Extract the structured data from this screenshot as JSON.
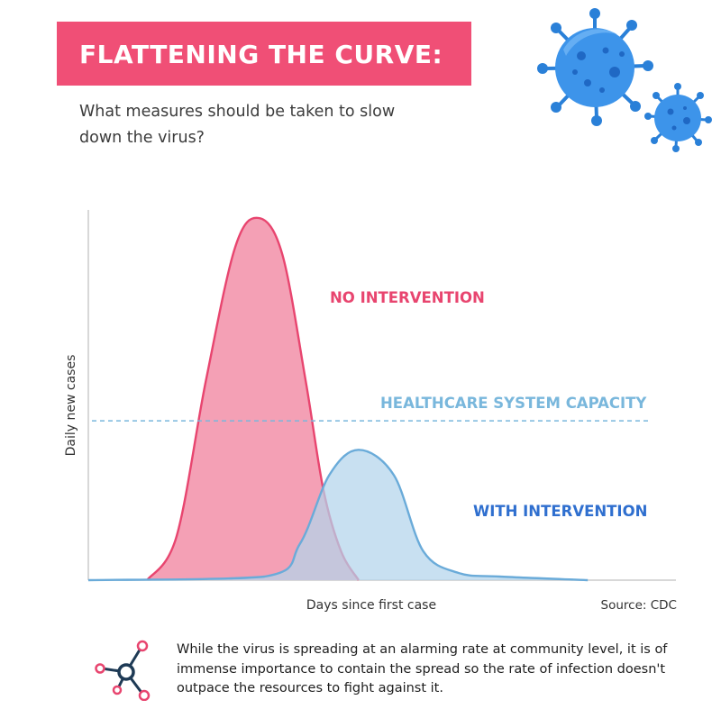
{
  "header": {
    "title": "FLATTENING THE CURVE:",
    "subtitle": "What measures should be taken to slow down the virus?"
  },
  "chart_data": {
    "type": "area",
    "title": "FLATTENING THE CURVE:",
    "subtitle": "What measures should be taken to slow down the virus?",
    "xlabel": "Days since first case",
    "ylabel": "Daily new cases",
    "source": "Source: CDC",
    "x_ticks": [],
    "y_ticks": [],
    "xlim": [
      0,
      100
    ],
    "ylim": [
      0,
      100
    ],
    "grid": false,
    "series": [
      {
        "name": "NO INTERVENTION",
        "color": "#e8456f",
        "fill": "#f4a0b5",
        "x": [
          10,
          15,
          20,
          25,
          29,
          33,
          37,
          40,
          43,
          46
        ],
        "y": [
          0,
          12,
          55,
          92,
          100,
          90,
          55,
          25,
          8,
          0
        ]
      },
      {
        "name": "WITH INTERVENTION",
        "color": "#6aabd9",
        "fill": "#b3d4ec",
        "x": [
          0,
          30,
          36,
          41,
          46,
          52,
          57,
          63,
          70,
          85
        ],
        "y": [
          0,
          1,
          10,
          29,
          36,
          29,
          8,
          2,
          1,
          0
        ]
      }
    ],
    "annotations": [
      {
        "label": "HEALTHCARE SYSTEM CAPACITY",
        "type": "hline",
        "y": 44,
        "color": "#79b7dc"
      }
    ]
  },
  "series_labels": {
    "no_intervention": "NO INTERVENTION",
    "with_intervention": "WITH INTERVENTION",
    "capacity": "HEALTHCARE SYSTEM CAPACITY"
  },
  "footer": {
    "text": "While the virus is spreading at an alarming rate at community level, it is of immense importance to contain the spread so the rate of infection doesn't outpace the resources to fight against it.",
    "icon": "network-node-icon"
  },
  "colors": {
    "accent_pink": "#f04f76",
    "pink_line": "#e8456f",
    "pink_fill": "#f4a0b5",
    "blue_line": "#6aabd9",
    "blue_fill": "#b3d4ec",
    "blue_label": "#2f6fcf",
    "capacity_blue": "#79b7dc",
    "virus_blue": "#2d85e0"
  }
}
